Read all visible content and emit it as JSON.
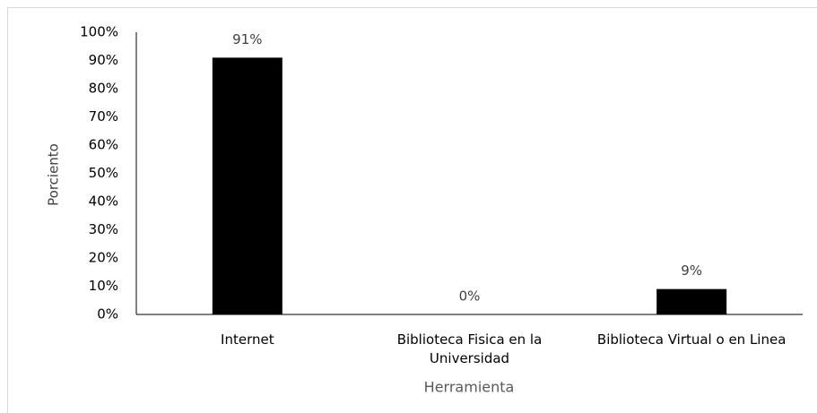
{
  "chart_data": {
    "type": "bar",
    "categories": [
      "Internet",
      "Biblioteca Fisica en la Universidad",
      "Biblioteca Virtual o en Linea"
    ],
    "values": [
      91,
      0,
      9
    ],
    "value_labels": [
      "91%",
      "0%",
      "9%"
    ],
    "color": "#000000",
    "ylim": [
      0,
      100
    ],
    "yticks": [
      {
        "value": 0,
        "label": "0%"
      },
      {
        "value": 10,
        "label": "10%"
      },
      {
        "value": 20,
        "label": "20%"
      },
      {
        "value": 30,
        "label": "30%"
      },
      {
        "value": 40,
        "label": "40%"
      },
      {
        "value": 50,
        "label": "50%"
      },
      {
        "value": 60,
        "label": "60%"
      },
      {
        "value": 70,
        "label": "70%"
      },
      {
        "value": 80,
        "label": "80%"
      },
      {
        "value": 90,
        "label": "90%"
      },
      {
        "value": 100,
        "label": "100%"
      }
    ],
    "ylabel": "Porciento",
    "xlabel": "Herramienta",
    "grid": false
  }
}
